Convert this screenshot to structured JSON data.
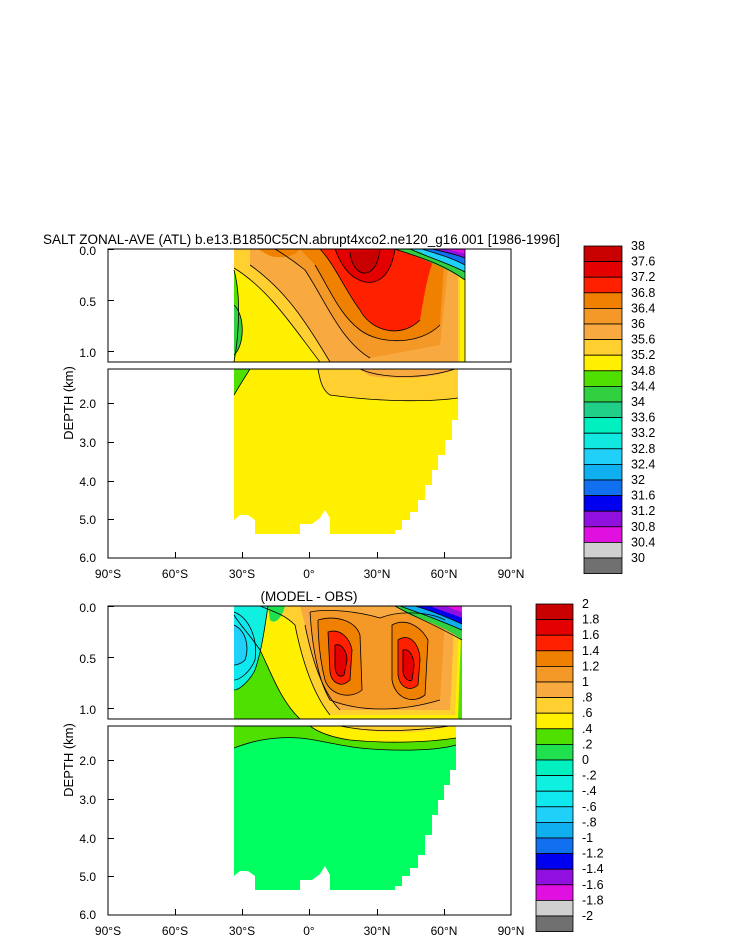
{
  "chart_data": [
    {
      "type": "heatmap",
      "title": "SALT ZONAL-AVE (ATL) b.e13.B1850C5CN.abrupt4xco2.ne120_g16.001 [1986-1996]",
      "ylabel": "DEPTH (km)",
      "xlabel": "",
      "x_ticks": [
        "90°S",
        "60°S",
        "30°S",
        "0°",
        "30°N",
        "60°N",
        "90°N"
      ],
      "y_ticks_upper": [
        "0.0",
        "0.5",
        "1.0"
      ],
      "y_ticks_lower": [
        "2.0",
        "3.0",
        "4.0",
        "5.0",
        "6.0"
      ],
      "xlim": [
        -90,
        90
      ],
      "ylim": [
        6.0,
        0.0
      ],
      "colorbar": {
        "labels": [
          "38",
          "37.6",
          "37.2",
          "36.8",
          "36.4",
          "36",
          "35.6",
          "35.2",
          "34.8",
          "34.4",
          "34",
          "33.6",
          "33.2",
          "32.8",
          "32.4",
          "32",
          "31.6",
          "31.2",
          "30.8",
          "30.4",
          "30"
        ],
        "colors": [
          "#C80000",
          "#E40000",
          "#FF2000",
          "#F08000",
          "#F49828",
          "#F8AA40",
          "#FFD030",
          "#FFF000",
          "#50E000",
          "#30D040",
          "#20D088",
          "#00F0C0",
          "#10E8E0",
          "#20D0F8",
          "#10B0F0",
          "#1070F0",
          "#0000F0",
          "#9010E0",
          "#E010E0",
          "#D0D0D0",
          "#707070"
        ]
      },
      "fields": [
        {
          "name": "upper",
          "region": "0-1.1 km"
        },
        {
          "name": "lower",
          "region": "1.1-5.4 km"
        }
      ]
    },
    {
      "type": "heatmap",
      "title": "(MODEL - OBS)",
      "ylabel": "DEPTH (km)",
      "xlabel": "",
      "x_ticks": [
        "90°S",
        "60°S",
        "30°S",
        "0°",
        "30°N",
        "60°N",
        "90°N"
      ],
      "y_ticks_upper": [
        "0.0",
        "0.5",
        "1.0"
      ],
      "y_ticks_lower": [
        "2.0",
        "3.0",
        "4.0",
        "5.0",
        "6.0"
      ],
      "xlim": [
        -90,
        90
      ],
      "ylim": [
        6.0,
        0.0
      ],
      "colorbar": {
        "labels": [
          "2",
          "1.8",
          "1.6",
          "1.4",
          "1.2",
          "1",
          ".8",
          ".6",
          ".4",
          ".2",
          "0",
          "-.2",
          "-.4",
          "-.6",
          "-.8",
          "-1",
          "-1.2",
          "-1.4",
          "-1.6",
          "-1.8",
          "-2"
        ],
        "colors": [
          "#C80000",
          "#E40000",
          "#FF2000",
          "#F08000",
          "#F49828",
          "#F8AA40",
          "#FFD030",
          "#FFF000",
          "#50E000",
          "#20E050",
          "#00F0C0",
          "#10F0E0",
          "#10E8F0",
          "#20D0F8",
          "#10B0F0",
          "#1070F0",
          "#0000F0",
          "#9010E0",
          "#E010E0",
          "#D0D0D0",
          "#707070"
        ]
      }
    }
  ]
}
